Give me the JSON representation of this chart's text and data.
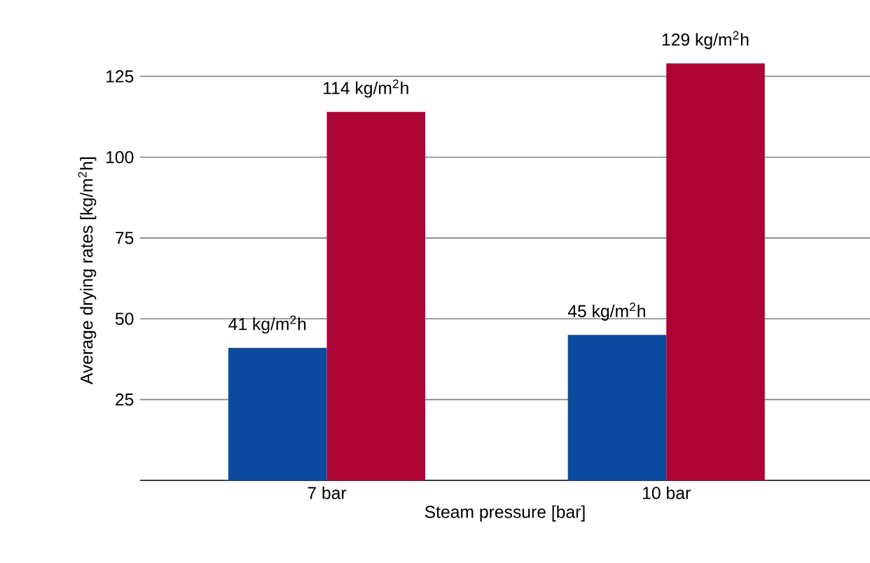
{
  "chart_data": {
    "type": "bar",
    "xlabel": "Steam pressure [bar]",
    "ylabel": "Average drying rates [kg/m$^{2}$h]",
    "categories": [
      "7 bar",
      "10 bar"
    ],
    "series": [
      {
        "color": "#0b4a9e",
        "values": [
          41,
          45
        ],
        "value_labels": [
          "41 kg/m$^{2}$h",
          "45 kg/m$^{2}$h"
        ]
      },
      {
        "color": "#ae0335",
        "values": [
          114,
          129
        ],
        "value_labels": [
          "114 kg/m$^{2}$h",
          "129 kg/m$^{2}$h"
        ]
      }
    ],
    "ylim": [
      0,
      130
    ],
    "yticks": [
      25,
      50,
      75,
      100,
      125
    ],
    "grid": "y"
  }
}
